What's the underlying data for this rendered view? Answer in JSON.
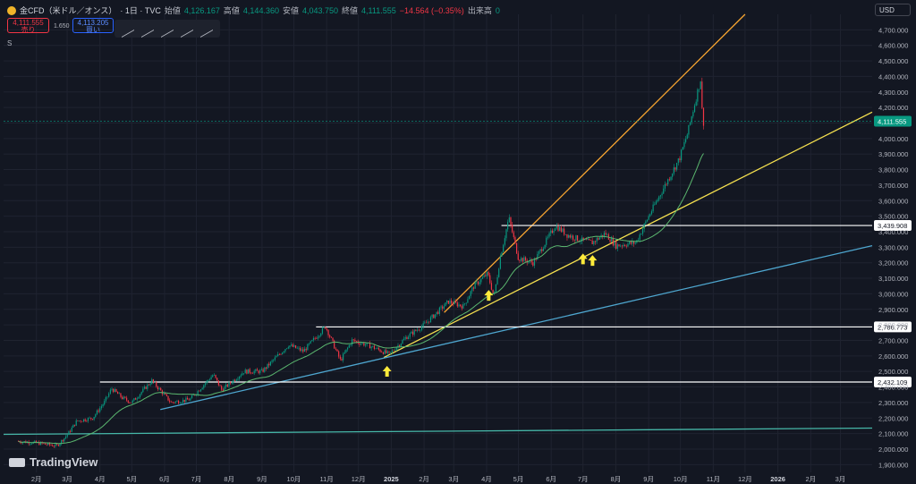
{
  "header": {
    "symbol": "金CFD（米ドル／オンス）",
    "interval": "· 1日 · TVC",
    "open_label": "始値",
    "open": "4,126.167",
    "high_label": "高値",
    "high": "4,144.360",
    "low_label": "安値",
    "low": "4,043.750",
    "close_label": "終値",
    "close": "4,111.555",
    "change": "−14.564 (−0.35%)",
    "volume_label": "出来高",
    "volume": "0"
  },
  "trade": {
    "sell_price": "4,111.555",
    "sell_label": "売り",
    "spread": "1.650",
    "buy_price": "4,113.205",
    "buy_label": "買い"
  },
  "indicator_toggle": "S",
  "currency": "USD",
  "brand": "TradingView",
  "colors": {
    "background": "#131722",
    "up": "#089981",
    "down": "#f23645",
    "orange_trend": "#f7a531",
    "yellow_trend": "#f5e04f",
    "blue_trend": "#4ea6cf",
    "teal_trend": "#46b7a8",
    "ma": "#5bb76f",
    "levels": "#ffffff",
    "arrows": "#ffeb3b"
  },
  "chart_data": {
    "type": "line",
    "series": [
      {
        "name": "",
        "x": [
          "2024-01-15",
          "2024-02-01",
          "2024-02-20",
          "2024-03-01",
          "2024-03-10",
          "2024-03-25",
          "2024-04-05",
          "2024-04-12",
          "2024-04-22",
          "2024-05-01",
          "2024-05-20",
          "2024-06-07",
          "2024-06-25",
          "2024-07-17",
          "2024-07-25",
          "2024-08-15",
          "2024-09-01",
          "2024-09-26",
          "2024-10-10",
          "2024-10-31",
          "2024-11-14",
          "2024-11-25",
          "2024-12-10",
          "2024-12-30",
          "2025-01-15",
          "2025-02-01",
          "2025-02-24",
          "2025-03-10",
          "2025-03-20",
          "2025-04-02",
          "2025-04-08",
          "2025-04-14",
          "2025-04-22",
          "2025-05-01",
          "2025-05-15",
          "2025-06-05",
          "2025-06-16",
          "2025-07-01",
          "2025-07-10",
          "2025-07-22",
          "2025-08-01",
          "2025-08-20",
          "2025-09-01",
          "2025-09-15",
          "2025-09-30",
          "2025-10-08",
          "2025-10-15",
          "2025-10-20",
          "2025-10-22",
          "2025-10-24"
        ],
        "values": [
          2050,
          2040,
          2020,
          2090,
          2180,
          2200,
          2300,
          2390,
          2330,
          2300,
          2440,
          2300,
          2320,
          2480,
          2380,
          2500,
          2500,
          2670,
          2630,
          2790,
          2570,
          2700,
          2670,
          2610,
          2720,
          2800,
          2950,
          2920,
          3050,
          3130,
          2980,
          3240,
          3490,
          3230,
          3200,
          3440,
          3380,
          3340,
          3330,
          3390,
          3310,
          3330,
          3500,
          3680,
          3870,
          4040,
          4240,
          4380,
          4100,
          4111
        ]
      }
    ],
    "price_levels": [
      2432.109,
      2786.773,
      3439.908
    ],
    "current_price": 4111.555,
    "y_tick_labels": [
      "1,900.000",
      "2,000.000",
      "2,100.000",
      "2,200.000",
      "2,300.000",
      "2,400.000",
      "2,500.000",
      "2,600.000",
      "2,700.000",
      "2,800.000",
      "2,900.000",
      "3,000.000",
      "3,100.000",
      "3,200.000",
      "3,300.000",
      "3,400.000",
      "3,500.000",
      "3,600.000",
      "3,700.000",
      "3,800.000",
      "3,900.000",
      "4,000.000",
      "4,100.000",
      "4,200.000",
      "4,300.000",
      "4,400.000",
      "4,500.000",
      "4,600.000",
      "4,700.000"
    ],
    "x_tick_labels": [
      "2月",
      "3月",
      "4月",
      "5月",
      "6月",
      "7月",
      "8月",
      "9月",
      "10月",
      "11月",
      "12月",
      "2025",
      "2月",
      "3月",
      "4月",
      "5月",
      "6月",
      "7月",
      "8月",
      "9月",
      "10月",
      "11月",
      "12月",
      "2026",
      "2月",
      "3月"
    ],
    "x_tick_dates": [
      "2024-02-01",
      "2024-03-01",
      "2024-04-01",
      "2024-05-01",
      "2024-06-01",
      "2024-07-01",
      "2024-08-01",
      "2024-09-01",
      "2024-10-01",
      "2024-11-01",
      "2024-12-01",
      "2025-01-01",
      "2025-02-01",
      "2025-03-01",
      "2025-04-01",
      "2025-05-01",
      "2025-06-01",
      "2025-07-01",
      "2025-08-01",
      "2025-09-01",
      "2025-10-01",
      "2025-11-01",
      "2025-12-01",
      "2026-01-01",
      "2026-02-01",
      "2026-03-01"
    ],
    "trendlines": [
      {
        "color": "#f7a531",
        "from": [
          "2025-02-20",
          2880
        ],
        "to": [
          "2025-12-01",
          4800
        ]
      },
      {
        "color": "#f5e04f",
        "from": [
          "2024-12-25",
          2590
        ],
        "to": [
          "2026-03-31",
          4170
        ]
      },
      {
        "color": "#4ea6cf",
        "from": [
          "2024-05-28",
          2255
        ],
        "to": [
          "2026-03-31",
          3310
        ]
      },
      {
        "color": "#46b7a8",
        "from": [
          "2024-01-01",
          2095
        ],
        "to": [
          "2026-03-31",
          2135
        ]
      }
    ],
    "arrow_dates": [
      "2024-12-28",
      "2025-04-03",
      "2025-07-01",
      "2025-07-10"
    ],
    "ylim": [
      1850,
      4800
    ],
    "xlim": [
      "2024-01-01",
      "2026-03-31"
    ],
    "grid": true,
    "legend": "none"
  }
}
